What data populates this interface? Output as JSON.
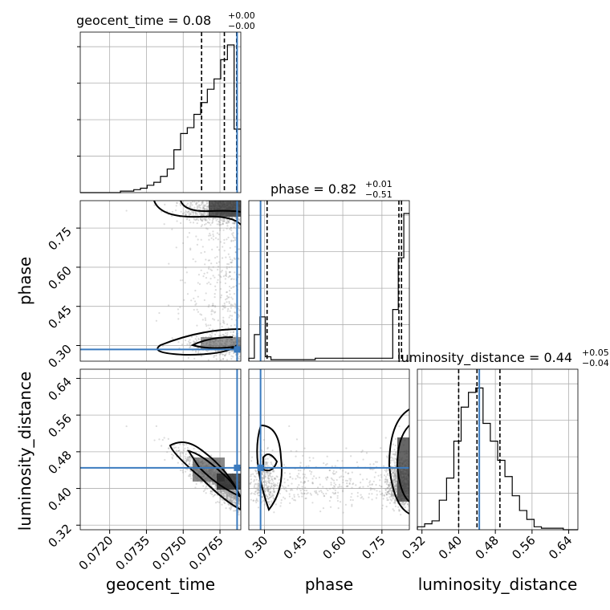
{
  "chart_data": {
    "type": "corner",
    "parameters": [
      "geocent_time",
      "phase",
      "luminosity_distance"
    ],
    "truth": {
      "geocent_time": 0.0772,
      "phase": 0.285,
      "luminosity_distance": 0.445
    },
    "panels": {
      "geocent_time": {
        "title_main": "geocent_time = 0.08",
        "title_sup": "+0.00",
        "title_sub": "−0.00",
        "range": [
          0.0708,
          0.07735
        ],
        "xticks": [
          0.072,
          0.0735,
          0.075,
          0.0765
        ],
        "xtick_labels": [
          "0.0720",
          "0.0735",
          "0.0750",
          "0.0765"
        ],
        "quantiles": [
          0.07575,
          0.07668,
          0.07718
        ],
        "hist": [
          0,
          0,
          0,
          0,
          0,
          0,
          0.01,
          0.01,
          0.02,
          0.03,
          0.05,
          0.07,
          0.11,
          0.16,
          0.29,
          0.4,
          0.44,
          0.53,
          0.61,
          0.7,
          0.77,
          0.9,
          1.0,
          0.43
        ]
      },
      "phase": {
        "title_main": "phase = 0.82",
        "title_sup": "+0.01",
        "title_sub": "−0.51",
        "range": [
          0.24,
          0.855
        ],
        "xticks": [
          0.3,
          0.45,
          0.6,
          0.75
        ],
        "xtick_labels": [
          "0.30",
          "0.45",
          "0.60",
          "0.75"
        ],
        "yticks": [
          0.3,
          0.45,
          0.6,
          0.75
        ],
        "ytick_labels": [
          "0.30",
          "0.45",
          "0.60",
          "0.75"
        ],
        "quantiles": [
          0.31,
          0.815,
          0.825
        ],
        "hist": [
          0.02,
          0.18,
          0.3,
          0.03,
          0.01,
          0.01,
          0.01,
          0.01,
          0.01,
          0.01,
          0.01,
          0.01,
          0.02,
          0.02,
          0.02,
          0.02,
          0.02,
          0.02,
          0.02,
          0.02,
          0.02,
          0.02,
          0.02,
          0.02,
          0.02,
          0.02,
          0.35,
          0.7,
          1.0
        ]
      },
      "luminosity_distance": {
        "title_main": "luminosity_distance = 0.44",
        "title_sup": "+0.05",
        "title_sub": "−0.04",
        "range": [
          0.31,
          0.66
        ],
        "xticks": [
          0.32,
          0.4,
          0.48,
          0.56,
          0.64
        ],
        "xtick_labels": [
          "0.32",
          "0.40",
          "0.48",
          "0.56",
          "0.64"
        ],
        "yticks": [
          0.32,
          0.4,
          0.48,
          0.56,
          0.64
        ],
        "ytick_labels": [
          "0.32",
          "0.40",
          "0.48",
          "0.56",
          "0.64"
        ],
        "quantiles": [
          0.4,
          0.44,
          0.49
        ],
        "hist": [
          0.02,
          0.04,
          0.06,
          0.2,
          0.35,
          0.6,
          0.83,
          0.93,
          0.96,
          0.72,
          0.6,
          0.47,
          0.36,
          0.23,
          0.13,
          0.07,
          0.02,
          0.01,
          0.01,
          0.01,
          0,
          0
        ]
      }
    },
    "axis_labels": {
      "x": [
        "geocent_time",
        "phase",
        "luminosity_distance"
      ],
      "y": [
        "phase",
        "luminosity_distance"
      ]
    }
  }
}
